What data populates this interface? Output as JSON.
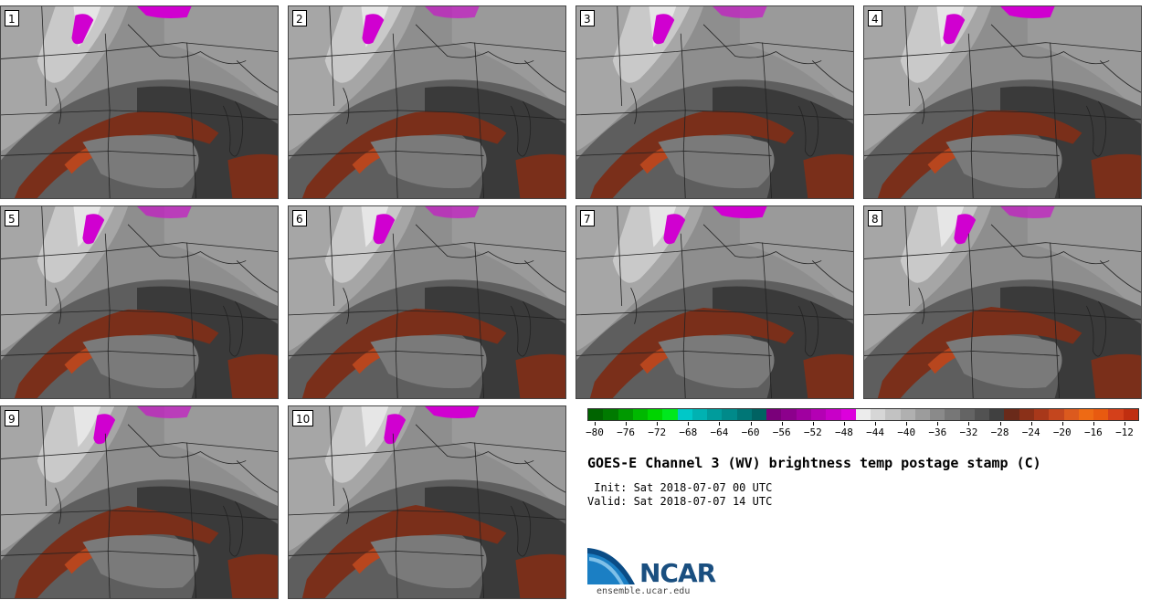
{
  "panels": [
    {
      "label": "1"
    },
    {
      "label": "2"
    },
    {
      "label": "3"
    },
    {
      "label": "4"
    },
    {
      "label": "5"
    },
    {
      "label": "6"
    },
    {
      "label": "7"
    },
    {
      "label": "8"
    },
    {
      "label": "9"
    },
    {
      "label": "10"
    }
  ],
  "colorbar": {
    "ticks": [
      "−80",
      "−76",
      "−72",
      "−68",
      "−64",
      "−60",
      "−56",
      "−52",
      "−48",
      "−44",
      "−40",
      "−36",
      "−32",
      "−28",
      "−24",
      "−20",
      "−16",
      "−12"
    ],
    "colors": [
      "#006400",
      "#007a00",
      "#009900",
      "#00b800",
      "#00d400",
      "#00e81e",
      "#00c8c8",
      "#00b2b2",
      "#009c9c",
      "#008a8a",
      "#007676",
      "#006262",
      "#7a007a",
      "#8c008c",
      "#a000a0",
      "#b400b4",
      "#c800c8",
      "#dc00dc",
      "#ececec",
      "#d6d6d6",
      "#c2c2c2",
      "#b0b0b0",
      "#9c9c9c",
      "#8a8a8a",
      "#777777",
      "#646464",
      "#525252",
      "#404040",
      "#6a2a1a",
      "#8a3018",
      "#a8381a",
      "#c4461e",
      "#dc5a1e",
      "#ee6a14",
      "#e85a10",
      "#d4401a",
      "#c02e10"
    ]
  },
  "title": "GOES-E Channel 3 (WV) brightness temp postage stamp (C)",
  "init": " Init: Sat 2018-07-07 00 UTC",
  "valid": "Valid: Sat 2018-07-07 14 UTC",
  "logo": {
    "text": "NCAR",
    "url": "ensemble.ucar.edu"
  }
}
